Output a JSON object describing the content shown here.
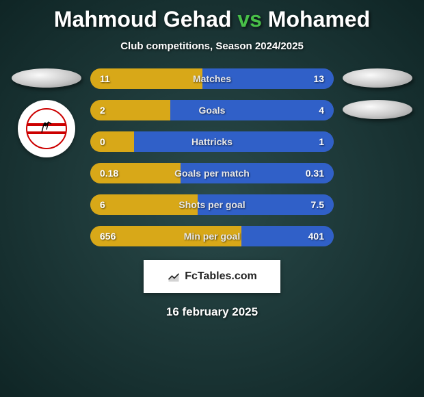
{
  "title": {
    "left": "Mahmoud Gehad",
    "vs": "vs",
    "right": "Mohamed"
  },
  "subtitle": "Club competitions, Season 2024/2025",
  "colors": {
    "left_fill": "#d8a818",
    "right_fill": "#3060c8",
    "track": "#606060"
  },
  "stats": [
    {
      "label": "Matches",
      "lv": "11",
      "rv": "13",
      "lp": 46,
      "rp": 54
    },
    {
      "label": "Goals",
      "lv": "2",
      "rv": "4",
      "lp": 33,
      "rp": 67
    },
    {
      "label": "Hattricks",
      "lv": "0",
      "rv": "1",
      "lp": 18,
      "rp": 82
    },
    {
      "label": "Goals per match",
      "lv": "0.18",
      "rv": "0.31",
      "lp": 37,
      "rp": 63
    },
    {
      "label": "Shots per goal",
      "lv": "6",
      "rv": "7.5",
      "lp": 44,
      "rp": 56
    },
    {
      "label": "Min per goal",
      "lv": "656",
      "rv": "401",
      "lp": 62,
      "rp": 38
    }
  ],
  "footer": "FcTables.com",
  "date": "16 february 2025"
}
